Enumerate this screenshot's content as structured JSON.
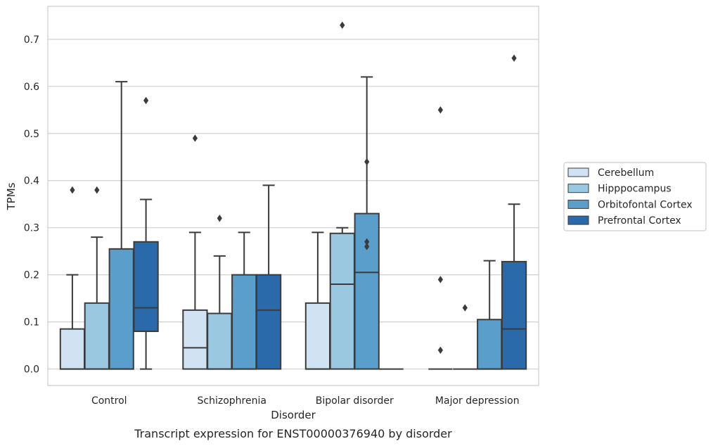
{
  "caption": "Transcript expression for ENST00000376940 by disorder",
  "chart_data": {
    "type": "box",
    "xlabel": "Disorder",
    "ylabel": "TPMs",
    "categories": [
      "Control",
      "Schizophrenia",
      "Bipolar disorder",
      "Major depression"
    ],
    "ylim": [
      -0.035,
      0.77
    ],
    "yticks": [
      0.0,
      0.1,
      0.2,
      0.3,
      0.4,
      0.5,
      0.6,
      0.7
    ],
    "ytick_labels": [
      "0.0",
      "0.1",
      "0.2",
      "0.3",
      "0.4",
      "0.5",
      "0.6",
      "0.7"
    ],
    "grid": "horizontal",
    "legend_position": "right",
    "series": [
      {
        "name": "Cerebellum",
        "color": "#d1e2f2",
        "boxes": [
          {
            "low": 0.0,
            "q1": 0.0,
            "median": 0.0,
            "q3": 0.085,
            "high": 0.2,
            "outliers": [
              0.38
            ]
          },
          {
            "low": 0.0,
            "q1": 0.0,
            "median": 0.045,
            "q3": 0.125,
            "high": 0.29,
            "outliers": [
              0.49
            ]
          },
          {
            "low": 0.0,
            "q1": 0.0,
            "median": 0.0,
            "q3": 0.14,
            "high": 0.29,
            "outliers": []
          },
          {
            "low": 0.0,
            "q1": 0.0,
            "median": 0.0,
            "q3": 0.0,
            "high": 0.0,
            "outliers": [
              0.04,
              0.19,
              0.55
            ]
          }
        ]
      },
      {
        "name": "Hipppocampus",
        "color": "#9ac8e0",
        "boxes": [
          {
            "low": 0.0,
            "q1": 0.0,
            "median": 0.0,
            "q3": 0.14,
            "high": 0.28,
            "outliers": [
              0.38
            ]
          },
          {
            "low": 0.0,
            "q1": 0.0,
            "median": 0.0,
            "q3": 0.118,
            "high": 0.24,
            "outliers": [
              0.32
            ]
          },
          {
            "low": 0.0,
            "q1": 0.0,
            "median": 0.18,
            "q3": 0.288,
            "high": 0.3,
            "outliers": [
              0.73
            ]
          },
          {
            "low": 0.0,
            "q1": 0.0,
            "median": 0.0,
            "q3": 0.0,
            "high": 0.0,
            "outliers": [
              0.13
            ]
          }
        ]
      },
      {
        "name": "Orbitofontal Cortex",
        "color": "#5a9fcb",
        "boxes": [
          {
            "low": 0.0,
            "q1": 0.0,
            "median": 0.0,
            "q3": 0.255,
            "high": 0.61,
            "outliers": []
          },
          {
            "low": 0.0,
            "q1": 0.0,
            "median": 0.0,
            "q3": 0.2,
            "high": 0.29,
            "outliers": []
          },
          {
            "low": 0.0,
            "q1": 0.0,
            "median": 0.205,
            "q3": 0.33,
            "high": 0.62,
            "outliers": [
              0.26,
              0.27,
              0.44
            ]
          },
          {
            "low": 0.0,
            "q1": 0.0,
            "median": 0.0,
            "q3": 0.105,
            "high": 0.23,
            "outliers": []
          }
        ]
      },
      {
        "name": "Prefrontal Cortex",
        "color": "#2a6aab",
        "boxes": [
          {
            "low": 0.0,
            "q1": 0.08,
            "median": 0.13,
            "q3": 0.27,
            "high": 0.36,
            "outliers": [
              0.57
            ]
          },
          {
            "low": 0.0,
            "q1": 0.0,
            "median": 0.125,
            "q3": 0.2,
            "high": 0.39,
            "outliers": []
          },
          {
            "low": 0.0,
            "q1": 0.0,
            "median": 0.0,
            "q3": 0.0,
            "high": 0.0,
            "outliers": []
          },
          {
            "low": 0.0,
            "q1": 0.0,
            "median": 0.085,
            "q3": 0.228,
            "high": 0.35,
            "outliers": [
              0.66
            ]
          }
        ]
      }
    ]
  }
}
